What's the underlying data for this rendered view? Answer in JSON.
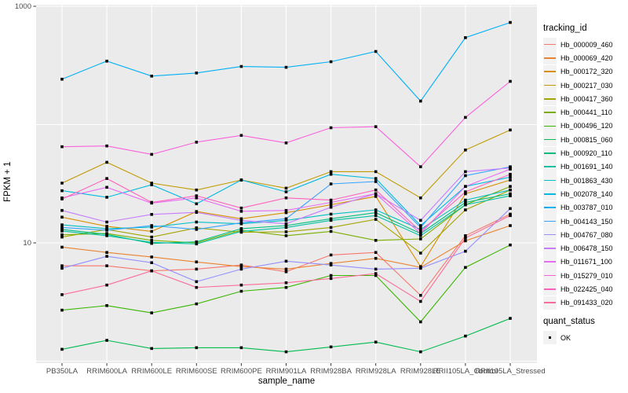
{
  "legend": {
    "color_title": "tracking_id",
    "shape_title": "quant_status",
    "shape_items": [
      "OK"
    ]
  },
  "theme": {
    "panel_bg": "#EBEBEB",
    "grid_color": "#FFFFFF",
    "tick_text_color": "#4D4D4D",
    "axis_title_color": "#000000",
    "legend_key_bg": "#F2F2F2",
    "point_color": "#000000"
  },
  "chart_data": {
    "type": "line",
    "title": "",
    "xlabel": "sample_name",
    "ylabel": "FPKM + 1",
    "y_scale": "log10",
    "ylim": [
      1,
      1000
    ],
    "grid": "major white gridlines on gray panel",
    "legend_position": "right",
    "y_ticks": [
      {
        "label": "1000",
        "value": 1000
      },
      {
        "label": "10",
        "value": 10
      }
    ],
    "gridline_values": [
      1000,
      100,
      10,
      1
    ],
    "point_marker": {
      "shape": "square",
      "color": "#000000",
      "meaning": "quant_status OK"
    },
    "categories": [
      "PB350LA",
      "RRIM600LA",
      "RRIM600LE",
      "RRIM600SE",
      "RRIM600PE",
      "RRIM901LA",
      "RRIM928BA",
      "RRIM928LA",
      "RRIM928LE",
      "RRII105LA_Control",
      "RRII105LA_Stressed"
    ],
    "series": [
      {
        "name": "Hb_000009_460",
        "color": "#F8766D",
        "values": [
          6.4,
          6.4,
          5.8,
          6.0,
          6.5,
          5.7,
          7.9,
          8.3,
          3.6,
          11.5,
          17.5
        ]
      },
      {
        "name": "Hb_000069_420",
        "color": "#EA8331",
        "values": [
          9.2,
          8.3,
          7.6,
          6.9,
          6.3,
          6.0,
          6.7,
          7.4,
          6.2,
          10.4,
          14.0
        ]
      },
      {
        "name": "Hb_000172_320",
        "color": "#D89000",
        "values": [
          16.5,
          13.8,
          12.5,
          18.4,
          16.0,
          18.0,
          21.0,
          24.7,
          6.3,
          26.0,
          34.0
        ]
      },
      {
        "name": "Hb_000217_030",
        "color": "#C09B00",
        "values": [
          32,
          48,
          32,
          28,
          34,
          29,
          40,
          40,
          24,
          61,
          90
        ]
      },
      {
        "name": "Hb_000417_360",
        "color": "#A3A500",
        "values": [
          11.2,
          13.0,
          11.2,
          13.4,
          12.3,
          12.4,
          13.5,
          15.8,
          8.2,
          19.0,
          28.0
        ]
      },
      {
        "name": "Hb_000441_110",
        "color": "#7CAE00",
        "values": [
          11.7,
          12.0,
          10.5,
          10.0,
          12.8,
          11.5,
          12.5,
          10.5,
          10.8,
          21.0,
          30.0
        ]
      },
      {
        "name": "Hb_000496_120",
        "color": "#39B600",
        "values": [
          2.7,
          2.95,
          2.56,
          3.05,
          3.9,
          4.2,
          5.3,
          5.3,
          2.15,
          6.2,
          9.6
        ]
      },
      {
        "name": "Hb_000815_060",
        "color": "#00BB4E",
        "values": [
          1.26,
          1.5,
          1.28,
          1.3,
          1.3,
          1.2,
          1.32,
          1.45,
          1.2,
          1.63,
          2.3
        ]
      },
      {
        "name": "Hb_000920_110",
        "color": "#00BF7D",
        "values": [
          13.0,
          11.8,
          9.9,
          10.2,
          13.2,
          14.0,
          16.0,
          18.0,
          12.0,
          22.0,
          26.0
        ]
      },
      {
        "name": "Hb_001691_140",
        "color": "#00C1A3",
        "values": [
          12.6,
          11.5,
          10.1,
          9.8,
          12.5,
          13.5,
          15.5,
          17.0,
          11.5,
          21.0,
          25.0
        ]
      },
      {
        "name": "Hb_001863_430",
        "color": "#00BFC4",
        "values": [
          14.2,
          13.2,
          13.6,
          15.0,
          14.5,
          15.5,
          17.5,
          19.0,
          13.0,
          23.0,
          28.0
        ]
      },
      {
        "name": "Hb_002078_140",
        "color": "#00BAE0",
        "values": [
          27.6,
          24.3,
          31.0,
          21.4,
          34.0,
          27.0,
          38.0,
          35.0,
          14.0,
          30.0,
          36.0
        ]
      },
      {
        "name": "Hb_003787_010",
        "color": "#00B0F6",
        "values": [
          242,
          344,
          257,
          273,
          310,
          305,
          340,
          415,
          158,
          543,
          730
        ]
      },
      {
        "name": "Hb_004143_150",
        "color": "#35A2FF",
        "values": [
          13.5,
          12.8,
          14.0,
          13.0,
          14.8,
          16.0,
          31.5,
          33.0,
          13.5,
          37.0,
          44.0
        ]
      },
      {
        "name": "Hb_004767_080",
        "color": "#9590FF",
        "values": [
          6.1,
          7.7,
          6.8,
          4.7,
          6.0,
          7.0,
          6.5,
          6.0,
          6.1,
          8.5,
          19.5
        ]
      },
      {
        "name": "Hb_006478_150",
        "color": "#C77CFF",
        "values": [
          18.8,
          15.0,
          17.4,
          18.1,
          15.5,
          14.5,
          20.0,
          26.0,
          15.5,
          40.0,
          43.0
        ]
      },
      {
        "name": "Hb_011671_100",
        "color": "#E76BF3",
        "values": [
          24.0,
          29.5,
          21.7,
          24.0,
          18.5,
          18.8,
          22.0,
          26.0,
          12.0,
          30.0,
          42.0
        ]
      },
      {
        "name": "Hb_015279_010",
        "color": "#FA62DB",
        "values": [
          65,
          66,
          56,
          71,
          81,
          70,
          94,
          96,
          44,
          115,
          232
        ]
      },
      {
        "name": "Hb_022425_040",
        "color": "#FF62BC",
        "values": [
          23.5,
          35.0,
          22.0,
          25.0,
          19.7,
          24.0,
          23.0,
          28.0,
          12.5,
          27.0,
          38.0
        ]
      },
      {
        "name": "Hb_091433_020",
        "color": "#FF6A98",
        "values": [
          3.65,
          4.4,
          5.8,
          4.2,
          4.4,
          4.6,
          5.0,
          5.5,
          3.2,
          11.0,
          17.0
        ]
      }
    ]
  }
}
